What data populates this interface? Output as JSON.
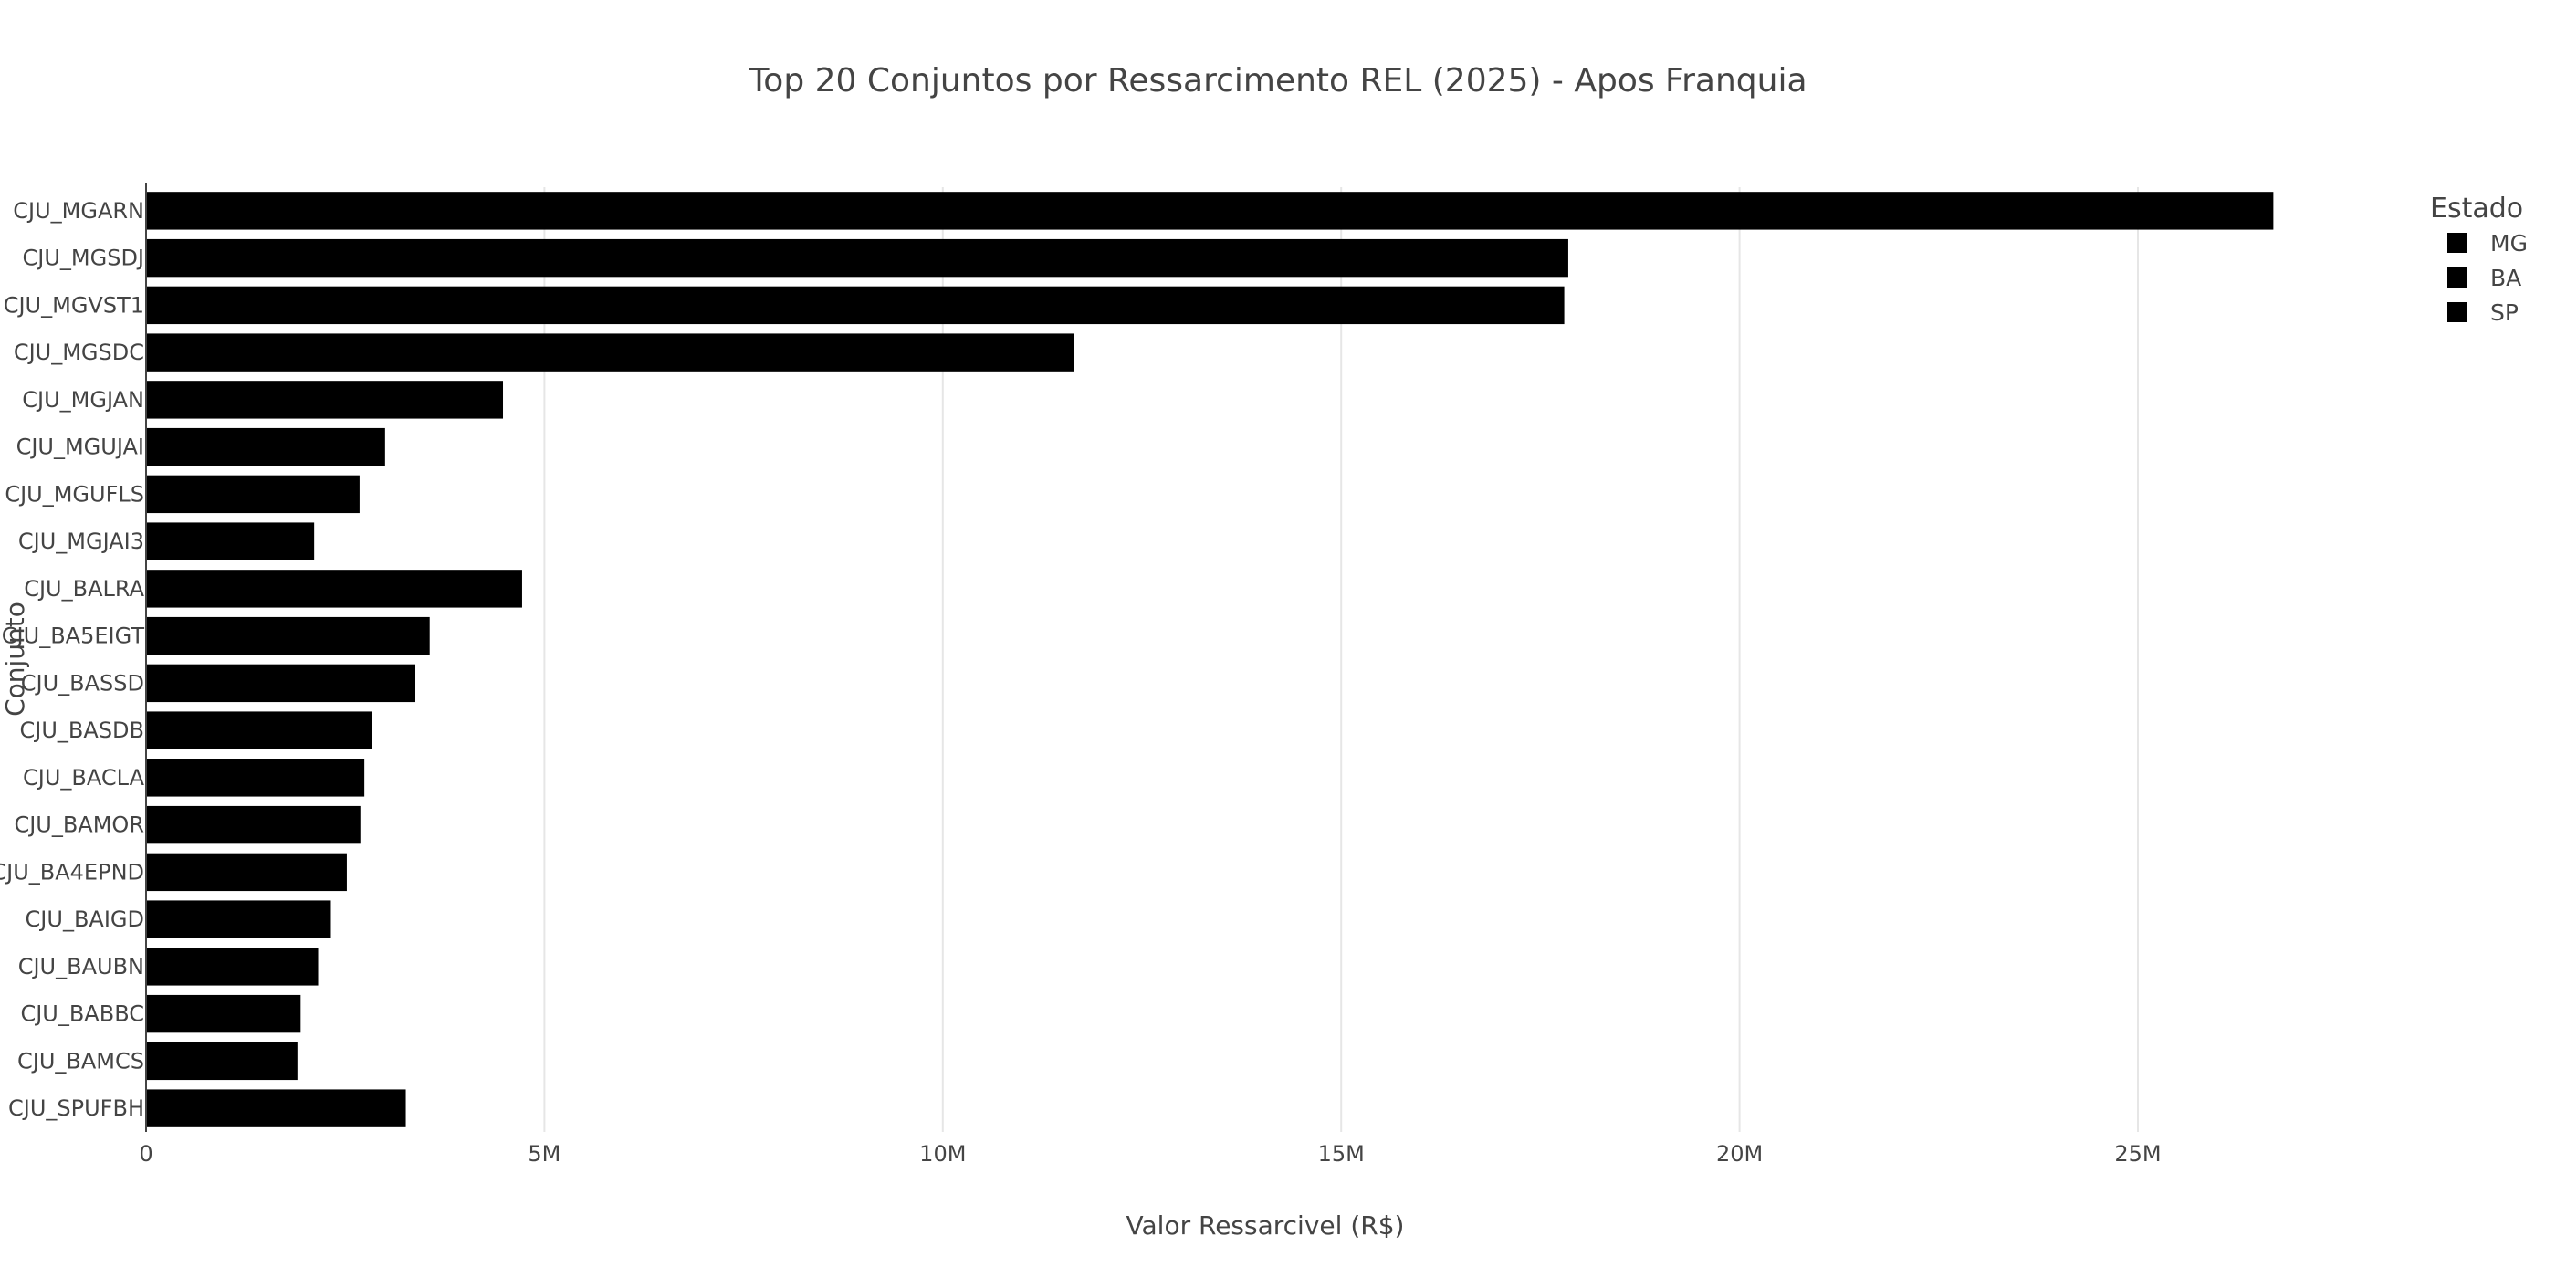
{
  "chart_data": {
    "type": "bar",
    "orientation": "horizontal",
    "title": "Top 20 Conjuntos por Ressarcimento REL (2025) - Apos Franquia",
    "xlabel": "Valor Ressarcivel (R$)",
    "ylabel": "Conjunto",
    "xlim": [
      0,
      29500000
    ],
    "xticks": [
      {
        "value": 0,
        "label": "0"
      },
      {
        "value": 5000000,
        "label": "5M"
      },
      {
        "value": 10000000,
        "label": "10M"
      },
      {
        "value": 15000000,
        "label": "15M"
      },
      {
        "value": 20000000,
        "label": "20M"
      },
      {
        "value": 25000000,
        "label": "25M"
      }
    ],
    "grid": "vertical",
    "legend": {
      "title": "Estado",
      "placement": "top-right",
      "entries": [
        "MG",
        "BA",
        "SP"
      ]
    },
    "colors": {
      "MG": "#000000",
      "BA": "#000000",
      "SP": "#000000"
    },
    "categories": [
      "CJU_MGARN",
      "CJU_MGSDJ",
      "CJU_MGVST1",
      "CJU_MGSDC",
      "CJU_MGJAN",
      "CJU_MGUJAI",
      "CJU_MGUFLS",
      "CJU_MGJAI3",
      "CJU_BALRA",
      "CJU_BA5EIGT",
      "CJU_BASSD",
      "CJU_BASDB",
      "CJU_BACLA",
      "CJU_BAMOR",
      "CJU_BA4EPND",
      "CJU_BAIGD",
      "CJU_BAUBN",
      "CJU_BABBC",
      "CJU_BAMCS",
      "CJU_SPUFBH"
    ],
    "group": [
      "MG",
      "MG",
      "MG",
      "MG",
      "MG",
      "MG",
      "MG",
      "MG",
      "BA",
      "BA",
      "BA",
      "BA",
      "BA",
      "BA",
      "BA",
      "BA",
      "BA",
      "BA",
      "BA",
      "SP"
    ],
    "values": [
      26700000,
      17850000,
      17800000,
      11650000,
      4480000,
      3000000,
      2680000,
      2110000,
      4720000,
      3560000,
      3380000,
      2830000,
      2740000,
      2690000,
      2520000,
      2320000,
      2160000,
      1940000,
      1900000,
      3260000
    ]
  }
}
